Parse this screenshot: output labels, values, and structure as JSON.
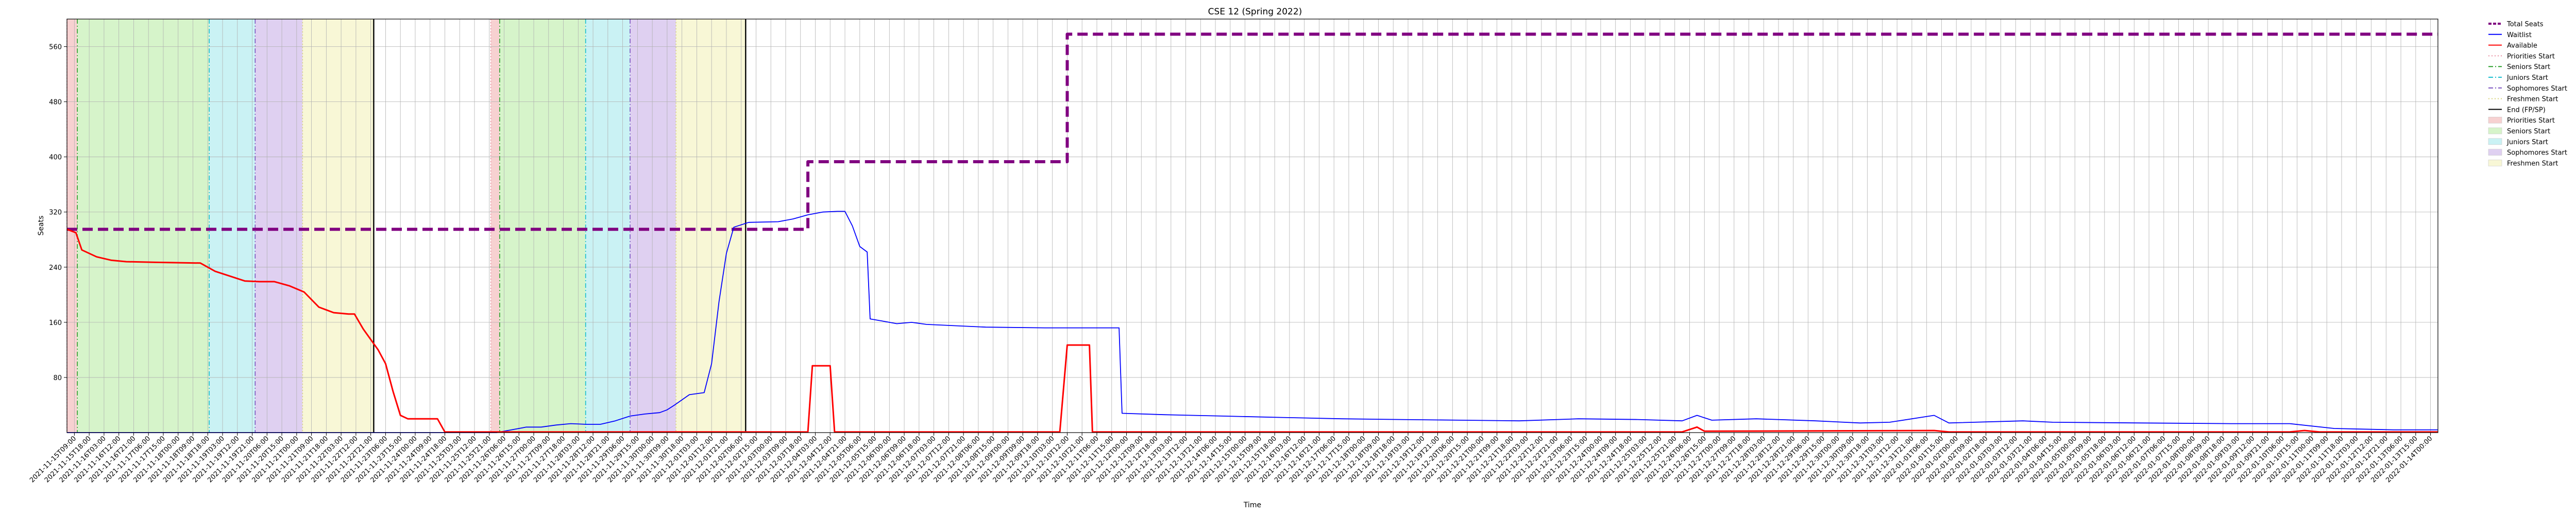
{
  "chart_data": {
    "type": "line",
    "title": "CSE 12 (Spring 2022)",
    "xlabel": "Time",
    "ylabel": "Seats",
    "ylim": [
      0,
      600
    ],
    "yticks": [
      80,
      160,
      240,
      320,
      400,
      480,
      560
    ],
    "x_count": 160,
    "grid": true,
    "legend_placement": "outside-right",
    "x_tick_labels": [
      "2021-11-15T09:00",
      "2021-11-15T18:00",
      "2021-11-16T03:00",
      "2021-11-16T12:00",
      "2021-11-16T21:00",
      "2021-11-17T06:00",
      "2021-11-17T15:00",
      "2021-11-18T00:00",
      "2021-11-18T09:00",
      "2021-11-18T18:00",
      "2021-11-19T03:00",
      "2021-11-19T12:00",
      "2021-11-19T21:00",
      "2021-11-20T06:00",
      "2021-11-20T15:00",
      "2021-11-21T00:00",
      "2021-11-21T09:00",
      "2021-11-21T18:00",
      "2021-11-22T03:00",
      "2021-11-22T12:00",
      "2021-11-22T21:00",
      "2021-11-23T06:00",
      "2021-11-23T15:00",
      "2021-11-24T00:00",
      "2021-11-24T09:00",
      "2021-11-24T18:00",
      "2021-11-25T03:00",
      "2021-11-25T12:00",
      "2021-11-25T21:00",
      "2021-11-26T06:00",
      "2021-11-26T15:00",
      "2021-11-27T00:00",
      "2021-11-27T09:00",
      "2021-11-27T18:00",
      "2021-11-28T03:00",
      "2021-11-28T12:00",
      "2021-11-28T21:00",
      "2021-11-29T06:00",
      "2021-11-29T15:00",
      "2021-11-30T00:00",
      "2021-11-30T09:00",
      "2021-11-30T18:00",
      "2021-12-01T03:00",
      "2021-12-01T12:00",
      "2021-12-01T21:00",
      "2021-12-02T06:00",
      "2021-12-02T15:00",
      "2021-12-03T00:00",
      "2021-12-03T09:00",
      "2021-12-03T18:00",
      "2021-12-04T03:00",
      "2021-12-04T12:00",
      "2021-12-04T21:00",
      "2021-12-05T06:00",
      "2021-12-05T15:00",
      "2021-12-06T00:00",
      "2021-12-06T09:00",
      "2021-12-06T18:00",
      "2021-12-07T03:00",
      "2021-12-07T12:00",
      "2021-12-07T21:00",
      "2021-12-08T06:00",
      "2021-12-08T15:00",
      "2021-12-09T00:00",
      "2021-12-09T09:00",
      "2021-12-09T18:00",
      "2021-12-10T03:00",
      "2021-12-10T12:00",
      "2021-12-10T21:00",
      "2021-12-11T06:00",
      "2021-12-11T15:00",
      "2021-12-12T00:00",
      "2021-12-12T09:00",
      "2021-12-12T18:00",
      "2021-12-13T03:00",
      "2021-12-13T12:00",
      "2021-12-13T21:00",
      "2021-12-14T06:00",
      "2021-12-14T15:00",
      "2021-12-15T00:00",
      "2021-12-15T09:00",
      "2021-12-15T18:00",
      "2021-12-16T03:00",
      "2021-12-16T12:00",
      "2021-12-16T21:00",
      "2021-12-17T06:00",
      "2021-12-17T15:00",
      "2021-12-18T00:00",
      "2021-12-18T09:00",
      "2021-12-18T18:00",
      "2021-12-19T03:00",
      "2021-12-19T12:00",
      "2021-12-19T21:00",
      "2021-12-20T06:00",
      "2021-12-20T15:00",
      "2021-12-21T00:00",
      "2021-12-21T09:00",
      "2021-12-21T18:00",
      "2021-12-22T03:00",
      "2021-12-22T12:00",
      "2021-12-22T21:00",
      "2021-12-23T06:00",
      "2021-12-23T15:00",
      "2021-12-24T00:00",
      "2021-12-24T09:00",
      "2021-12-24T18:00",
      "2021-12-25T03:00",
      "2021-12-25T12:00",
      "2021-12-25T21:00",
      "2021-12-26T06:00",
      "2021-12-26T15:00",
      "2021-12-27T00:00",
      "2021-12-27T09:00",
      "2021-12-27T18:00",
      "2021-12-28T03:00",
      "2021-12-28T12:00",
      "2021-12-28T21:00",
      "2021-12-29T06:00",
      "2021-12-29T15:00",
      "2021-12-30T00:00",
      "2021-12-30T09:00",
      "2021-12-30T18:00",
      "2021-12-31T03:00",
      "2021-12-31T12:00",
      "2021-12-31T21:00",
      "2022-01-01T06:00",
      "2022-01-01T15:00",
      "2022-01-02T00:00",
      "2022-01-02T09:00",
      "2022-01-02T18:00",
      "2022-01-03T03:00",
      "2022-01-03T12:00",
      "2022-01-03T21:00",
      "2022-01-04T06:00",
      "2022-01-04T15:00",
      "2022-01-05T00:00",
      "2022-01-05T09:00",
      "2022-01-05T18:00",
      "2022-01-06T03:00",
      "2022-01-06T12:00",
      "2022-01-06T21:00",
      "2022-01-07T06:00",
      "2022-01-07T15:00",
      "2022-01-08T00:00",
      "2022-01-08T09:00",
      "2022-01-08T18:00",
      "2022-01-09T03:00",
      "2022-01-09T12:00",
      "2022-01-09T21:00",
      "2022-01-10T06:00",
      "2022-01-10T15:00",
      "2022-01-11T00:00",
      "2022-01-11T09:00",
      "2022-01-11T18:00",
      "2022-01-12T03:00",
      "2022-01-12T12:00",
      "2022-01-12T21:00",
      "2022-01-13T06:00",
      "2022-01-13T15:00",
      "2022-01-14T00:00"
    ],
    "series": [
      {
        "name": "Total Seats",
        "color": "#800080",
        "style": "dashed",
        "points": [
          [
            0,
            295
          ],
          [
            50,
            295
          ],
          [
            50,
            393
          ],
          [
            67.5,
            393
          ],
          [
            67.5,
            578
          ],
          [
            160,
            578
          ]
        ]
      },
      {
        "name": "Waitlist",
        "color": "#0000ff",
        "style": "solid",
        "points": [
          [
            0,
            0
          ],
          [
            29,
            0
          ],
          [
            29.5,
            2
          ],
          [
            30,
            4
          ],
          [
            31,
            8
          ],
          [
            32,
            8
          ],
          [
            33,
            11
          ],
          [
            34,
            13
          ],
          [
            35,
            12
          ],
          [
            36,
            12
          ],
          [
            37,
            17
          ],
          [
            38,
            24
          ],
          [
            39,
            27
          ],
          [
            40,
            29
          ],
          [
            40.5,
            33
          ],
          [
            41,
            40
          ],
          [
            42,
            55
          ],
          [
            43,
            58
          ],
          [
            43.5,
            100
          ],
          [
            44,
            190
          ],
          [
            44.5,
            260
          ],
          [
            45,
            298
          ],
          [
            46,
            305
          ],
          [
            48,
            306
          ],
          [
            49,
            310
          ],
          [
            50,
            316
          ],
          [
            51,
            320
          ],
          [
            52,
            321
          ],
          [
            52.5,
            321
          ],
          [
            53,
            300
          ],
          [
            53.5,
            270
          ],
          [
            54,
            262
          ],
          [
            54.2,
            165
          ],
          [
            55,
            162
          ],
          [
            56,
            158
          ],
          [
            57,
            160
          ],
          [
            58,
            157
          ],
          [
            62,
            153
          ],
          [
            66,
            152
          ],
          [
            70,
            152
          ],
          [
            71,
            152
          ],
          [
            71.2,
            28
          ],
          [
            74,
            26
          ],
          [
            78,
            24
          ],
          [
            82,
            22
          ],
          [
            86,
            20
          ],
          [
            90,
            19
          ],
          [
            94,
            18
          ],
          [
            98,
            17
          ],
          [
            102,
            20
          ],
          [
            106,
            19
          ],
          [
            109,
            17
          ],
          [
            110,
            25
          ],
          [
            111,
            18
          ],
          [
            114,
            20
          ],
          [
            118,
            17
          ],
          [
            121,
            14
          ],
          [
            123,
            15
          ],
          [
            126,
            25
          ],
          [
            127,
            14
          ],
          [
            132,
            17
          ],
          [
            134,
            15
          ],
          [
            140,
            14
          ],
          [
            146,
            13
          ],
          [
            150,
            13
          ],
          [
            153,
            6
          ],
          [
            157,
            4
          ],
          [
            160,
            4
          ]
        ]
      },
      {
        "name": "Available",
        "color": "#ff0000",
        "style": "solid",
        "points": [
          [
            0,
            295
          ],
          [
            0.6,
            290
          ],
          [
            1,
            265
          ],
          [
            2,
            255
          ],
          [
            3,
            250
          ],
          [
            4,
            248
          ],
          [
            6,
            247
          ],
          [
            9,
            246
          ],
          [
            10,
            234
          ],
          [
            11,
            227
          ],
          [
            12,
            220
          ],
          [
            13,
            219
          ],
          [
            14,
            219
          ],
          [
            15,
            213
          ],
          [
            16,
            204
          ],
          [
            17,
            182
          ],
          [
            18,
            174
          ],
          [
            19,
            172
          ],
          [
            19.4,
            172
          ],
          [
            20,
            150
          ],
          [
            21,
            120
          ],
          [
            21.5,
            100
          ],
          [
            22,
            60
          ],
          [
            22.5,
            25
          ],
          [
            23,
            20
          ],
          [
            24,
            20
          ],
          [
            25,
            20
          ],
          [
            25.5,
            1
          ],
          [
            50,
            1
          ],
          [
            50.3,
            97
          ],
          [
            51.5,
            97
          ],
          [
            51.8,
            1
          ],
          [
            67,
            1
          ],
          [
            67.5,
            127
          ],
          [
            69,
            127
          ],
          [
            69.2,
            1
          ],
          [
            109,
            1
          ],
          [
            110,
            8
          ],
          [
            110.5,
            2
          ],
          [
            126,
            3
          ],
          [
            127,
            1
          ],
          [
            140,
            1
          ],
          [
            150,
            1
          ],
          [
            151,
            3
          ],
          [
            152,
            1
          ],
          [
            160,
            1
          ]
        ]
      }
    ],
    "vertical_lines": [
      {
        "name": "Priorities Start",
        "x": 0,
        "color": "#e88ea0",
        "style": "dotted"
      },
      {
        "name": "Seniors Start",
        "x": 0.7,
        "color": "#2ca02c",
        "style": "dashdot"
      },
      {
        "name": "Juniors Start",
        "x": 9.6,
        "color": "#17becf",
        "style": "dashdot"
      },
      {
        "name": "Sophomores Start",
        "x": 12.7,
        "color": "#7b52c0",
        "style": "dashdot"
      },
      {
        "name": "Freshmen Start",
        "x": 15.9,
        "color": "#d6d27a",
        "style": "dotted"
      },
      {
        "name": "End (FP/SP)",
        "x": 20.7,
        "color": "#000000",
        "style": "solid"
      },
      {
        "name": "Priorities Start",
        "x": 28.6,
        "color": "#e88ea0",
        "style": "dotted"
      },
      {
        "name": "Seniors Start",
        "x": 29.2,
        "color": "#2ca02c",
        "style": "dashdot"
      },
      {
        "name": "Juniors Start",
        "x": 35.0,
        "color": "#17becf",
        "style": "dashdot"
      },
      {
        "name": "Sophomores Start",
        "x": 38.0,
        "color": "#7b52c0",
        "style": "dashdot"
      },
      {
        "name": "Freshmen Start",
        "x": 41.1,
        "color": "#d6d27a",
        "style": "dotted"
      },
      {
        "name": "End (FP/SP)",
        "x": 45.8,
        "color": "#000000",
        "style": "solid"
      }
    ],
    "shaded_regions": [
      {
        "name": "Priorities Start",
        "from": 0,
        "to": 0.7,
        "color": "#f4c2c2"
      },
      {
        "name": "Seniors Start",
        "from": 0.7,
        "to": 9.6,
        "color": "#c8f0b8"
      },
      {
        "name": "Juniors Start",
        "from": 9.6,
        "to": 12.7,
        "color": "#b8eef0"
      },
      {
        "name": "Sophomores Start",
        "from": 12.7,
        "to": 15.9,
        "color": "#d4c0ec"
      },
      {
        "name": "Freshmen Start",
        "from": 15.9,
        "to": 20.7,
        "color": "#f6f4c8"
      },
      {
        "name": "Priorities Start",
        "from": 28.6,
        "to": 29.2,
        "color": "#f4c2c2"
      },
      {
        "name": "Seniors Start",
        "from": 29.2,
        "to": 35.0,
        "color": "#c8f0b8"
      },
      {
        "name": "Juniors Start",
        "from": 35.0,
        "to": 38.0,
        "color": "#b8eef0"
      },
      {
        "name": "Sophomores Start",
        "from": 38.0,
        "to": 41.1,
        "color": "#d4c0ec"
      },
      {
        "name": "Freshmen Start",
        "from": 41.1,
        "to": 45.8,
        "color": "#f6f4c8"
      }
    ],
    "legend": [
      {
        "label": "Total Seats",
        "kind": "line",
        "color": "#800080",
        "style": "dashed"
      },
      {
        "label": "Waitlist",
        "kind": "line",
        "color": "#0000ff",
        "style": "solid"
      },
      {
        "label": "Available",
        "kind": "line",
        "color": "#ff0000",
        "style": "solid"
      },
      {
        "label": "Priorities Start",
        "kind": "line",
        "color": "#e88ea0",
        "style": "dotted"
      },
      {
        "label": "Seniors Start",
        "kind": "line",
        "color": "#2ca02c",
        "style": "dashdot"
      },
      {
        "label": "Juniors Start",
        "kind": "line",
        "color": "#17becf",
        "style": "dashdot"
      },
      {
        "label": "Sophomores Start",
        "kind": "line",
        "color": "#7b52c0",
        "style": "dashdot"
      },
      {
        "label": "Freshmen Start",
        "kind": "line",
        "color": "#d6d27a",
        "style": "dotted"
      },
      {
        "label": "End (FP/SP)",
        "kind": "line",
        "color": "#000000",
        "style": "solid"
      },
      {
        "label": "Priorities Start",
        "kind": "patch",
        "color": "#f4c2c2"
      },
      {
        "label": "Seniors Start",
        "kind": "patch",
        "color": "#c8f0b8"
      },
      {
        "label": "Juniors Start",
        "kind": "patch",
        "color": "#b8eef0"
      },
      {
        "label": "Sophomores Start",
        "kind": "patch",
        "color": "#d4c0ec"
      },
      {
        "label": "Freshmen Start",
        "kind": "patch",
        "color": "#f6f4c8"
      }
    ]
  }
}
